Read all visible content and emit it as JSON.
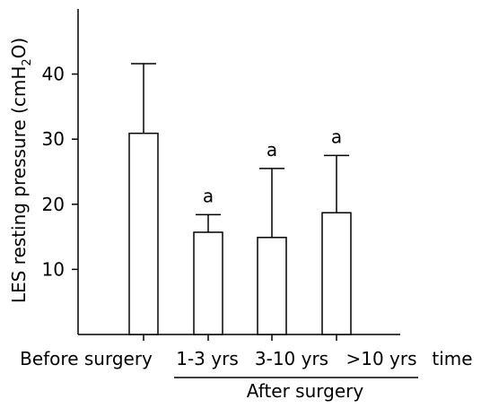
{
  "chart_data": {
    "type": "bar",
    "ylabel_main": "LES resting pressure (cmH",
    "ylabel_sub": "2",
    "ylabel_end": "O)",
    "xlabel": "time",
    "group_label": "After surgery",
    "categories": [
      "Before surgery",
      "1-3 yrs",
      "3-10 yrs",
      ">10 yrs"
    ],
    "values": [
      30.9,
      15.7,
      14.9,
      18.7
    ],
    "errors": [
      10.7,
      2.7,
      10.6,
      8.8
    ],
    "annotations": [
      "",
      "a",
      "a",
      "a"
    ],
    "yticks": [
      10,
      20,
      30,
      40
    ],
    "ylim": [
      0,
      50
    ],
    "grid": false,
    "bar_fill": "#ffffff",
    "stroke": "#000000"
  }
}
